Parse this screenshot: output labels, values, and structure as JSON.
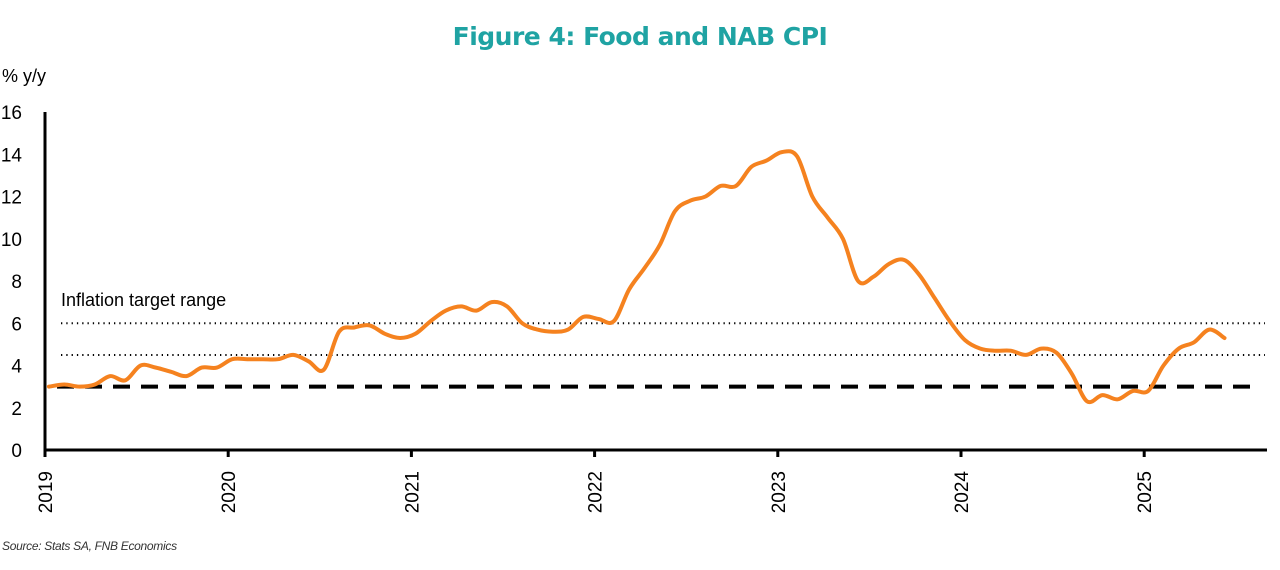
{
  "chart_data": {
    "type": "line",
    "title": "Figure 4: Food and NAB CPI",
    "ylabel": "% y/y",
    "xlabel": "",
    "ylim": [
      0,
      16
    ],
    "yticks": [
      0,
      2,
      4,
      6,
      8,
      10,
      12,
      14,
      16
    ],
    "xlim": [
      "2019-01",
      "2025-08"
    ],
    "xticks": [
      "2019",
      "2020",
      "2021",
      "2022",
      "2023",
      "2024",
      "2025"
    ],
    "grid": false,
    "source": "Source: Stats SA, FNB Economics",
    "annotation": "Inflation target range",
    "reference_lines": [
      {
        "name": "target-upper",
        "value": 6,
        "style": "dotted"
      },
      {
        "name": "target-lower",
        "value": 4.5,
        "style": "dotted"
      },
      {
        "name": "target-floor",
        "value": 3,
        "style": "dashed"
      }
    ],
    "series": [
      {
        "name": "Food and NAB CPI",
        "color": "#f5821f",
        "start": "2019-01",
        "frequency": "monthly",
        "values": [
          3.0,
          3.1,
          3.0,
          3.1,
          3.5,
          3.3,
          4.0,
          3.9,
          3.7,
          3.5,
          3.9,
          3.9,
          4.3,
          4.3,
          4.3,
          4.3,
          4.5,
          4.2,
          3.8,
          5.6,
          5.8,
          5.9,
          5.5,
          5.3,
          5.5,
          6.1,
          6.6,
          6.8,
          6.6,
          7.0,
          6.8,
          6.0,
          5.7,
          5.6,
          5.7,
          6.3,
          6.2,
          6.1,
          7.6,
          8.6,
          9.7,
          11.3,
          11.8,
          12.0,
          12.5,
          12.5,
          13.4,
          13.7,
          14.1,
          13.9,
          12.0,
          11.0,
          10.0,
          8.0,
          8.2,
          8.8,
          9.0,
          8.3,
          7.2,
          6.1,
          5.2,
          4.8,
          4.7,
          4.7,
          4.5,
          4.8,
          4.6,
          3.6,
          2.3,
          2.6,
          2.4,
          2.8,
          2.8,
          4.0,
          4.8,
          5.1,
          5.7,
          5.3
        ]
      }
    ]
  }
}
